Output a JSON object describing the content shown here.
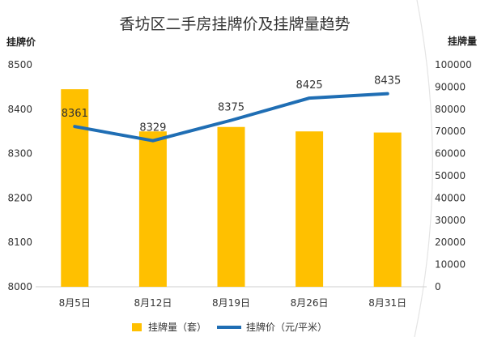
{
  "chart_data": {
    "type": "bar+line",
    "title": "香坊区二手房挂牌价及挂牌量趋势",
    "categories": [
      "8月5日",
      "8月12日",
      "8月19日",
      "8月26日",
      "8月31日"
    ],
    "y_left": {
      "label": "挂牌价",
      "range": [
        8000,
        8500
      ],
      "ticks": [
        8000,
        8100,
        8200,
        8300,
        8400,
        8500
      ]
    },
    "y_right": {
      "label": "挂牌量",
      "range": [
        0,
        100000
      ],
      "ticks": [
        0,
        10000,
        20000,
        30000,
        40000,
        50000,
        60000,
        70000,
        80000,
        90000,
        100000
      ]
    },
    "series": [
      {
        "name": "挂牌量（套）",
        "type": "bar",
        "axis": "right",
        "color": "#FFC000",
        "values": [
          89000,
          70000,
          72000,
          70000,
          69500
        ]
      },
      {
        "name": "挂牌价（元/平米）",
        "type": "line",
        "axis": "left",
        "color": "#1F6EB4",
        "values": [
          8361,
          8329,
          8375,
          8425,
          8435
        ],
        "labels": [
          "8361",
          "8329",
          "8375",
          "8425",
          "8435"
        ]
      }
    ],
    "grid": false,
    "legend_position": "bottom"
  }
}
